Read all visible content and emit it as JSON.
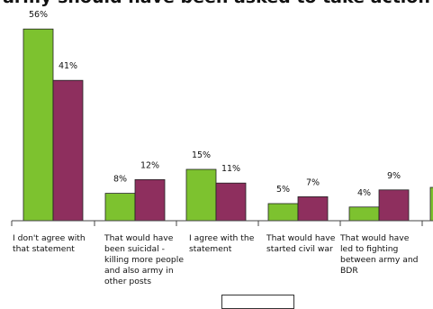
{
  "title": "army should have been asked to take action",
  "colors": {
    "series1": "#7dc22f",
    "series2": "#8e2f5e",
    "axis": "#444444"
  },
  "chart_data": {
    "type": "bar",
    "categories": [
      "I don't agree with that statement",
      "That would have been suicidal - killing more people and also army in other posts",
      "I agree with the statement",
      "That would have started civil war",
      "That would have led to fighting between army and BDR",
      ""
    ],
    "series": [
      {
        "values": [
          56,
          8,
          15,
          5,
          4,
          null
        ],
        "labels": [
          "56%",
          "8%",
          "15%",
          "5%",
          "4%",
          ""
        ]
      },
      {
        "values": [
          41,
          12,
          11,
          7,
          9,
          null
        ],
        "labels": [
          "41%",
          "12%",
          "11%",
          "7%",
          "9%",
          ""
        ]
      }
    ],
    "ylim": [
      0,
      60
    ],
    "legend": "bottom"
  }
}
